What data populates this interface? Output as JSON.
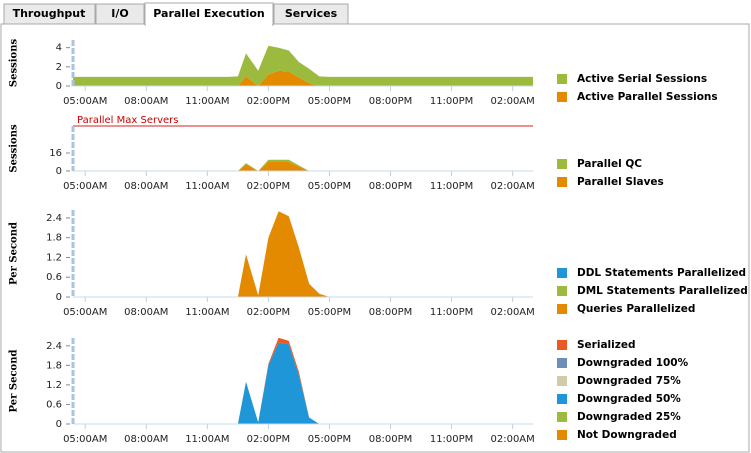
{
  "tabs": [
    "Throughput",
    "I/O",
    "Parallel Execution",
    "Services"
  ],
  "chart_data": [
    {
      "type": "area",
      "ylabel": "Sessions",
      "x": [
        4.4,
        5,
        6,
        7,
        8,
        9,
        10,
        11,
        12,
        12.5,
        12.9,
        13.5,
        14,
        14.5,
        15,
        15.5,
        16,
        16.5,
        17,
        18,
        19,
        20,
        21,
        22,
        23,
        24,
        25,
        26,
        27
      ],
      "xlim": [
        4.4,
        27
      ],
      "xticks": [
        {
          "value": 5,
          "label": "05:00AM"
        },
        {
          "value": 8,
          "label": "08:00AM"
        },
        {
          "value": 11,
          "label": "11:00AM"
        },
        {
          "value": 14,
          "label": "02:00PM"
        },
        {
          "value": 17,
          "label": "05:00PM"
        },
        {
          "value": 20,
          "label": "08:00PM"
        },
        {
          "value": 23,
          "label": "11:00PM"
        },
        {
          "value": 26,
          "label": "02:00AM"
        }
      ],
      "ylim": [
        0,
        4.8
      ],
      "yticks": [
        0,
        2,
        4
      ],
      "series": [
        {
          "name": "Active Serial Sessions",
          "color": "#9cbb3e",
          "values": [
            0.95,
            0.95,
            0.95,
            0.95,
            0.95,
            0.95,
            0.95,
            0.95,
            0.95,
            1.0,
            2.4,
            1.6,
            3.0,
            2.4,
            2.2,
            1.6,
            1.5,
            1.0,
            0.95,
            0.95,
            0.95,
            0.95,
            0.95,
            0.95,
            0.95,
            0.95,
            0.95,
            0.95,
            0.95
          ]
        },
        {
          "name": "Active Parallel Sessions",
          "color": "#e48a00",
          "values": [
            0,
            0,
            0,
            0,
            0,
            0,
            0,
            0,
            0,
            0,
            1.0,
            0,
            1.2,
            1.6,
            1.5,
            0.9,
            0.3,
            0,
            0,
            0,
            0,
            0,
            0,
            0,
            0,
            0,
            0,
            0,
            0
          ]
        }
      ]
    },
    {
      "type": "area",
      "ylabel": "Sessions",
      "x": [
        4.4,
        5,
        6,
        7,
        8,
        9,
        10,
        11,
        12,
        12.5,
        12.9,
        13.5,
        14,
        14.5,
        15,
        15.5,
        16,
        16.5,
        17,
        18,
        19,
        20,
        21,
        22,
        23,
        24,
        25,
        26,
        27
      ],
      "xlim": [
        4.4,
        27
      ],
      "xticks": [
        {
          "value": 5,
          "label": "05:00AM"
        },
        {
          "value": 8,
          "label": "08:00AM"
        },
        {
          "value": 11,
          "label": "11:00AM"
        },
        {
          "value": 14,
          "label": "02:00PM"
        },
        {
          "value": 17,
          "label": "05:00PM"
        },
        {
          "value": 20,
          "label": "08:00PM"
        },
        {
          "value": 23,
          "label": "11:00PM"
        },
        {
          "value": 26,
          "label": "02:00AM"
        }
      ],
      "ylim": [
        0,
        40
      ],
      "yticks": [
        0,
        16
      ],
      "max_line": {
        "label": "Parallel Max Servers",
        "value": 40,
        "color": "#d42020"
      },
      "series": [
        {
          "name": "Parallel QC",
          "color": "#9cbb3e",
          "values": [
            0,
            0,
            0,
            0,
            0,
            0,
            0,
            0,
            0,
            0,
            1,
            0,
            2,
            2,
            2,
            1,
            0,
            0,
            0,
            0,
            0,
            0,
            0,
            0,
            0,
            0,
            0,
            0,
            0
          ]
        },
        {
          "name": "Parallel Slaves",
          "color": "#e48a00",
          "values": [
            0,
            0,
            0,
            0,
            0,
            0,
            0,
            0,
            0,
            0,
            6,
            0,
            8,
            8,
            8,
            4,
            0,
            0,
            0,
            0,
            0,
            0,
            0,
            0,
            0,
            0,
            0,
            0,
            0
          ]
        }
      ]
    },
    {
      "type": "area",
      "ylabel": "Per Second",
      "x": [
        4.4,
        5,
        6,
        7,
        8,
        9,
        10,
        11,
        12,
        12.5,
        12.9,
        13.5,
        14,
        14.5,
        15,
        15.5,
        16,
        16.5,
        17,
        18,
        19,
        20,
        21,
        22,
        23,
        24,
        25,
        26,
        27
      ],
      "xlim": [
        4.4,
        27
      ],
      "xticks": [
        {
          "value": 5,
          "label": "05:00AM"
        },
        {
          "value": 8,
          "label": "08:00AM"
        },
        {
          "value": 11,
          "label": "11:00AM"
        },
        {
          "value": 14,
          "label": "02:00PM"
        },
        {
          "value": 17,
          "label": "05:00PM"
        },
        {
          "value": 20,
          "label": "08:00PM"
        },
        {
          "value": 23,
          "label": "11:00PM"
        },
        {
          "value": 26,
          "label": "02:00AM"
        }
      ],
      "ylim": [
        0,
        2.64
      ],
      "yticks": [
        0,
        0.6,
        1.2,
        1.8,
        2.4
      ],
      "series": [
        {
          "name": "DDL Statements Parallelized",
          "color": "#1e96d8",
          "values": [
            0,
            0,
            0,
            0,
            0,
            0,
            0,
            0,
            0,
            0,
            0,
            0,
            0,
            0,
            0,
            0,
            0,
            0,
            0,
            0,
            0,
            0,
            0,
            0,
            0,
            0,
            0,
            0,
            0
          ]
        },
        {
          "name": "DML Statements Parallelized",
          "color": "#9cbb3e",
          "values": [
            0,
            0,
            0,
            0,
            0,
            0,
            0,
            0,
            0,
            0,
            0,
            0,
            0,
            0,
            0,
            0,
            0,
            0,
            0,
            0,
            0,
            0,
            0,
            0,
            0,
            0,
            0,
            0,
            0
          ]
        },
        {
          "name": "Queries Parallelized",
          "color": "#e48a00",
          "values": [
            0,
            0,
            0,
            0,
            0,
            0,
            0,
            0,
            0,
            0,
            1.3,
            0.05,
            1.8,
            2.6,
            2.45,
            1.5,
            0.4,
            0.1,
            0,
            0,
            0,
            0,
            0,
            0,
            0,
            0,
            0,
            0,
            0
          ]
        }
      ]
    },
    {
      "type": "area",
      "ylabel": "Per Second",
      "x": [
        4.4,
        5,
        6,
        7,
        8,
        9,
        10,
        11,
        12,
        12.5,
        12.9,
        13.5,
        14,
        14.5,
        15,
        15.5,
        16,
        16.5,
        17,
        18,
        19,
        20,
        21,
        22,
        23,
        24,
        25,
        26,
        27
      ],
      "xlim": [
        4.4,
        27
      ],
      "xticks": [
        {
          "value": 5,
          "label": "05:00AM"
        },
        {
          "value": 8,
          "label": "08:00AM"
        },
        {
          "value": 11,
          "label": "11:00AM"
        },
        {
          "value": 14,
          "label": "02:00PM"
        },
        {
          "value": 17,
          "label": "05:00PM"
        },
        {
          "value": 20,
          "label": "08:00PM"
        },
        {
          "value": 23,
          "label": "11:00PM"
        },
        {
          "value": 26,
          "label": "02:00AM"
        }
      ],
      "ylim": [
        0,
        2.64
      ],
      "yticks": [
        0,
        0.6,
        1.2,
        1.8,
        2.4
      ],
      "series": [
        {
          "name": "Serialized",
          "color": "#ea5a24",
          "values": [
            0,
            0,
            0,
            0,
            0,
            0,
            0,
            0,
            0,
            0,
            0,
            0,
            0.05,
            0.15,
            0.1,
            0.1,
            0,
            0,
            0,
            0,
            0,
            0,
            0,
            0,
            0,
            0,
            0,
            0,
            0
          ]
        },
        {
          "name": "Downgraded 100%",
          "color": "#6b8fb8",
          "values": [
            0,
            0,
            0,
            0,
            0,
            0,
            0,
            0,
            0,
            0,
            0,
            0,
            0,
            0,
            0,
            0,
            0,
            0,
            0,
            0,
            0,
            0,
            0,
            0,
            0,
            0,
            0,
            0,
            0
          ]
        },
        {
          "name": "Downgraded 75%",
          "color": "#d2cba8",
          "values": [
            0,
            0,
            0,
            0,
            0,
            0,
            0,
            0,
            0,
            0,
            0,
            0,
            0,
            0,
            0,
            0,
            0,
            0,
            0,
            0,
            0,
            0,
            0,
            0,
            0,
            0,
            0,
            0,
            0
          ]
        },
        {
          "name": "Downgraded 50%",
          "color": "#1e96d8",
          "values": [
            0,
            0,
            0,
            0,
            0,
            0,
            0,
            0,
            0,
            0,
            1.3,
            0.05,
            1.8,
            2.5,
            2.45,
            1.5,
            0.2,
            0,
            0,
            0,
            0,
            0,
            0,
            0,
            0,
            0,
            0,
            0,
            0
          ]
        },
        {
          "name": "Downgraded 25%",
          "color": "#9cbb3e",
          "values": [
            0,
            0,
            0,
            0,
            0,
            0,
            0,
            0,
            0,
            0,
            0,
            0,
            0,
            0,
            0,
            0,
            0,
            0,
            0,
            0,
            0,
            0,
            0,
            0,
            0,
            0,
            0,
            0,
            0
          ]
        },
        {
          "name": "Not Downgraded",
          "color": "#e48a00",
          "values": [
            0,
            0,
            0,
            0,
            0,
            0,
            0,
            0,
            0,
            0,
            0,
            0,
            0,
            0,
            0,
            0,
            0,
            0,
            0,
            0,
            0,
            0,
            0,
            0,
            0,
            0,
            0,
            0,
            0
          ]
        }
      ]
    }
  ]
}
